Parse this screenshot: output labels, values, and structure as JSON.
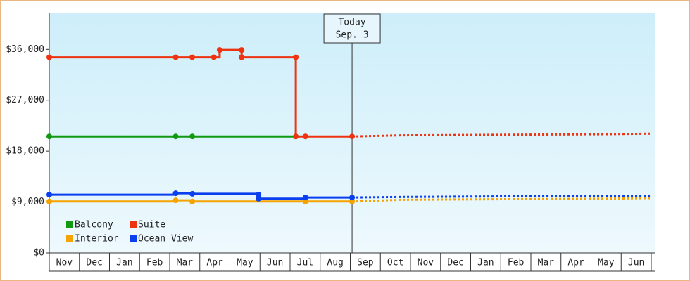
{
  "chart_data": {
    "type": "line",
    "step": true,
    "categories": [
      "Nov",
      "Dec",
      "Jan",
      "Feb",
      "Mar",
      "Apr",
      "May",
      "Jun",
      "Jul",
      "Aug",
      "Sep",
      "Oct",
      "Nov",
      "Dec",
      "Jan",
      "Feb",
      "Mar",
      "Apr",
      "May",
      "Jun"
    ],
    "xlim": [
      0,
      20
    ],
    "ylim": [
      0,
      42500
    ],
    "yticks": [
      {
        "value": 0,
        "label": "$0"
      },
      {
        "value": 9000,
        "label": "$9,000"
      },
      {
        "value": 18000,
        "label": "$18,000"
      },
      {
        "value": 27000,
        "label": "$27,000"
      },
      {
        "value": 36000,
        "label": "$36,000"
      }
    ],
    "annotation": {
      "x": 10.06,
      "lines": [
        "Today",
        "Sep. 3"
      ]
    },
    "series": [
      {
        "name": "Balcony",
        "color": "#119911",
        "x": [
          0,
          4.2,
          4.75,
          8.19
        ],
        "values": [
          20600,
          20600,
          20600,
          20600
        ],
        "forecast_x": [],
        "forecast_values": []
      },
      {
        "name": "Suite",
        "color": "#ee3311",
        "x": [
          0,
          4.2,
          4.75,
          5.47,
          5.66,
          6.39,
          6.39,
          8.19,
          8.19,
          8.51,
          10.06
        ],
        "values": [
          34600,
          34600,
          34600,
          34600,
          35900,
          35900,
          34600,
          34600,
          20600,
          20600,
          20600
        ],
        "forecast_x": [
          10.06,
          11.7,
          15.0,
          18.5,
          20
        ],
        "forecast_values": [
          20600,
          20800,
          20900,
          21000,
          21100
        ]
      },
      {
        "name": "Interior",
        "color": "#f5a300",
        "x": [
          0,
          4.2,
          4.75,
          8.51,
          10.06
        ],
        "values": [
          9100,
          9300,
          9100,
          9100,
          9100
        ],
        "forecast_x": [
          10.06,
          11.7,
          15.0,
          18.5,
          20
        ],
        "forecast_values": [
          9100,
          9400,
          9500,
          9600,
          9700
        ]
      },
      {
        "name": "Ocean View",
        "color": "#0a3ff0",
        "x": [
          0,
          4.2,
          4.75,
          6.95,
          6.95,
          8.51,
          10.06
        ],
        "values": [
          10300,
          10550,
          10450,
          10300,
          9600,
          9800,
          9800
        ],
        "forecast_x": [
          10.06,
          11.7,
          15.0,
          18.5,
          20
        ],
        "forecast_values": [
          9800,
          9900,
          10000,
          10050,
          10100
        ]
      }
    ],
    "legend": "bottom-left"
  }
}
